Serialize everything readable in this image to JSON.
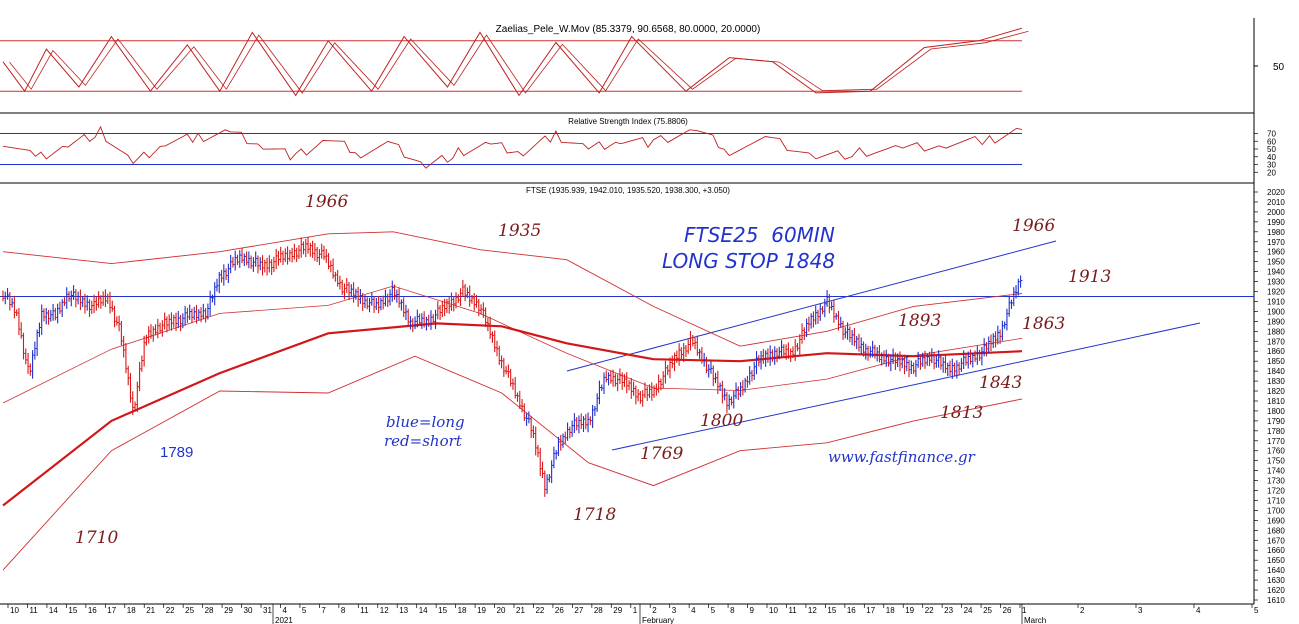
{
  "chart_data": {
    "type": "line",
    "panes": [
      {
        "name": "oscillator",
        "title": "Zaelias_Pele_W.Mov (85.3379, 90.6568, 80.0000, 20.0000)",
        "y_ticks": [
          "50"
        ],
        "upper_level": 80,
        "lower_level": 20
      },
      {
        "name": "rsi",
        "title": "Relative Strength Index (75.8806)",
        "y_ticks": [
          "70",
          "60",
          "50",
          "40",
          "30",
          "20"
        ],
        "upper_level": 70,
        "lower_level": 30,
        "last_value": 75.8806
      },
      {
        "name": "price",
        "title": "FTSE (1935.939, 1942.010, 1935.520, 1938.300, +3.050)",
        "ylim": [
          1610,
          2020
        ],
        "y_tick_step": 10,
        "horizontal_line": 1915,
        "last_close": 1938.3
      }
    ],
    "x_tick_labels": [
      "10",
      "11",
      "14",
      "15",
      "16",
      "17",
      "18",
      "21",
      "22",
      "25",
      "28",
      "29",
      "30",
      "31",
      "4",
      "5",
      "7",
      "8",
      "11",
      "12",
      "13",
      "14",
      "15",
      "18",
      "19",
      "20",
      "21",
      "22",
      "26",
      "27",
      "28",
      "29",
      "1",
      "2",
      "3",
      "4",
      "5",
      "8",
      "9",
      "10",
      "11",
      "12",
      "15",
      "16",
      "17",
      "18",
      "19",
      "22",
      "23",
      "24",
      "25",
      "26",
      "1",
      "2",
      "3",
      "4",
      "5"
    ],
    "period_labels": [
      {
        "text": "2021",
        "at_tick": "4"
      },
      {
        "text": "February",
        "at_tick": "1"
      },
      {
        "text": "March",
        "at_tick": "1 (March)"
      }
    ],
    "annotations": [
      {
        "text": "1966",
        "color": "#7a1a1a"
      },
      {
        "text": "1935",
        "color": "#7a1a1a"
      },
      {
        "text": "1966",
        "color": "#7a1a1a"
      },
      {
        "text": "1913",
        "color": "#7a1a1a"
      },
      {
        "text": "1893",
        "color": "#7a1a1a"
      },
      {
        "text": "1863",
        "color": "#7a1a1a"
      },
      {
        "text": "1843",
        "color": "#7a1a1a"
      },
      {
        "text": "1813",
        "color": "#7a1a1a"
      },
      {
        "text": "1800",
        "color": "#7a1a1a"
      },
      {
        "text": "1769",
        "color": "#7a1a1a"
      },
      {
        "text": "1718",
        "color": "#7a1a1a"
      },
      {
        "text": "1710",
        "color": "#7a1a1a"
      },
      {
        "text": "1789",
        "color": "#2233cc"
      },
      {
        "text": "FTSE25  60MIN",
        "color": "#2233cc"
      },
      {
        "text": "LONG STOP 1848",
        "color": "#2233cc"
      },
      {
        "text": "blue=long",
        "color": "#2233cc"
      },
      {
        "text": "red=short",
        "color": "#2233cc"
      },
      {
        "text": "www.fastfinance.gr",
        "color": "#2233cc"
      }
    ],
    "price_path": [
      [
        0,
        1918
      ],
      [
        6,
        1900
      ],
      [
        12,
        1835
      ],
      [
        18,
        1900
      ],
      [
        24,
        1895
      ],
      [
        30,
        1918
      ],
      [
        36,
        1910
      ],
      [
        42,
        1905
      ],
      [
        48,
        1915
      ],
      [
        54,
        1880
      ],
      [
        60,
        1800
      ],
      [
        66,
        1875
      ],
      [
        72,
        1885
      ],
      [
        78,
        1890
      ],
      [
        86,
        1895
      ],
      [
        94,
        1900
      ],
      [
        100,
        1935
      ],
      [
        110,
        1955
      ],
      [
        120,
        1945
      ],
      [
        130,
        1955
      ],
      [
        140,
        1965
      ],
      [
        148,
        1955
      ],
      [
        156,
        1925
      ],
      [
        164,
        1915
      ],
      [
        172,
        1905
      ],
      [
        180,
        1920
      ],
      [
        188,
        1890
      ],
      [
        196,
        1890
      ],
      [
        204,
        1905
      ],
      [
        212,
        1920
      ],
      [
        220,
        1905
      ],
      [
        228,
        1860
      ],
      [
        236,
        1820
      ],
      [
        244,
        1780
      ],
      [
        250,
        1725
      ],
      [
        256,
        1765
      ],
      [
        262,
        1785
      ],
      [
        270,
        1790
      ],
      [
        278,
        1835
      ],
      [
        286,
        1830
      ],
      [
        294,
        1815
      ],
      [
        300,
        1820
      ],
      [
        306,
        1840
      ],
      [
        312,
        1860
      ],
      [
        318,
        1870
      ],
      [
        326,
        1840
      ],
      [
        334,
        1810
      ],
      [
        340,
        1820
      ],
      [
        348,
        1850
      ],
      [
        356,
        1860
      ],
      [
        364,
        1858
      ],
      [
        372,
        1890
      ],
      [
        380,
        1910
      ],
      [
        388,
        1880
      ],
      [
        396,
        1865
      ],
      [
        404,
        1855
      ],
      [
        412,
        1850
      ],
      [
        420,
        1845
      ],
      [
        428,
        1855
      ],
      [
        436,
        1842
      ],
      [
        444,
        1850
      ],
      [
        452,
        1860
      ],
      [
        460,
        1880
      ],
      [
        466,
        1915
      ],
      [
        470,
        1938
      ]
    ],
    "ma_path": [
      [
        0,
        1705
      ],
      [
        50,
        1790
      ],
      [
        100,
        1838
      ],
      [
        150,
        1878
      ],
      [
        200,
        1888
      ],
      [
        230,
        1885
      ],
      [
        260,
        1868
      ],
      [
        300,
        1852
      ],
      [
        340,
        1850
      ],
      [
        380,
        1858
      ],
      [
        420,
        1855
      ],
      [
        470,
        1860
      ]
    ],
    "band_upper_path": [
      [
        0,
        1960
      ],
      [
        50,
        1948
      ],
      [
        100,
        1960
      ],
      [
        150,
        1978
      ],
      [
        180,
        1980
      ],
      [
        220,
        1962
      ],
      [
        260,
        1952
      ],
      [
        300,
        1905
      ],
      [
        340,
        1865
      ],
      [
        380,
        1880
      ],
      [
        420,
        1905
      ],
      [
        470,
        1918
      ]
    ],
    "band_lower_path": [
      [
        0,
        1640
      ],
      [
        50,
        1760
      ],
      [
        100,
        1820
      ],
      [
        150,
        1818
      ],
      [
        190,
        1855
      ],
      [
        230,
        1818
      ],
      [
        270,
        1748
      ],
      [
        300,
        1725
      ],
      [
        340,
        1760
      ],
      [
        380,
        1768
      ],
      [
        420,
        1790
      ],
      [
        470,
        1812
      ]
    ],
    "osc_path": [
      [
        0,
        55
      ],
      [
        10,
        20
      ],
      [
        20,
        70
      ],
      [
        35,
        25
      ],
      [
        50,
        85
      ],
      [
        68,
        20
      ],
      [
        85,
        75
      ],
      [
        100,
        20
      ],
      [
        115,
        90
      ],
      [
        135,
        15
      ],
      [
        150,
        80
      ],
      [
        170,
        20
      ],
      [
        185,
        85
      ],
      [
        205,
        25
      ],
      [
        220,
        90
      ],
      [
        238,
        15
      ],
      [
        255,
        78
      ],
      [
        275,
        18
      ],
      [
        290,
        85
      ],
      [
        315,
        20
      ],
      [
        335,
        60
      ],
      [
        355,
        55
      ],
      [
        375,
        18
      ],
      [
        400,
        20
      ],
      [
        425,
        72
      ],
      [
        450,
        80
      ],
      [
        470,
        95
      ]
    ],
    "rsi_path": [
      [
        0,
        60
      ],
      [
        15,
        38
      ],
      [
        30,
        55
      ],
      [
        45,
        72
      ],
      [
        60,
        30
      ],
      [
        75,
        58
      ],
      [
        90,
        65
      ],
      [
        105,
        72
      ],
      [
        120,
        55
      ],
      [
        135,
        40
      ],
      [
        150,
        62
      ],
      [
        165,
        45
      ],
      [
        180,
        55
      ],
      [
        195,
        28
      ],
      [
        210,
        45
      ],
      [
        225,
        55
      ],
      [
        240,
        45
      ],
      [
        255,
        68
      ],
      [
        270,
        50
      ],
      [
        285,
        62
      ],
      [
        300,
        58
      ],
      [
        320,
        75
      ],
      [
        335,
        48
      ],
      [
        355,
        62
      ],
      [
        375,
        40
      ],
      [
        395,
        45
      ],
      [
        415,
        50
      ],
      [
        435,
        55
      ],
      [
        455,
        62
      ],
      [
        470,
        75
      ]
    ]
  }
}
